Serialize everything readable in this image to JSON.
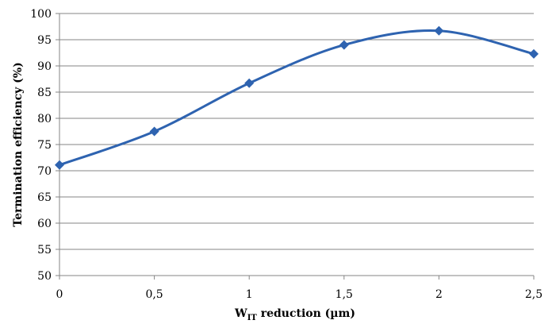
{
  "chart_data": {
    "type": "line",
    "x": [
      0,
      0.5,
      1,
      1.5,
      2,
      2.5
    ],
    "x_tick_labels": [
      "0",
      "0,5",
      "1",
      "1,5",
      "2",
      "2,5"
    ],
    "series": [
      {
        "values": [
          71.1,
          77.5,
          86.7,
          94.0,
          96.7,
          92.3
        ]
      }
    ],
    "xlabel": {
      "main": "W",
      "sub": "IT",
      "rest": " reduction (µm)"
    },
    "ylabel": "Termination efficiency (%)",
    "xlim": [
      0,
      2.5
    ],
    "ylim": [
      50,
      100
    ],
    "y_ticks": [
      "50",
      "55",
      "60",
      "65",
      "70",
      "75",
      "80",
      "85",
      "90",
      "95",
      "100"
    ],
    "grid": "horizontal",
    "line_style": "smoothed",
    "marker": "diamond",
    "color": "#2E63B0",
    "legend": "none"
  }
}
